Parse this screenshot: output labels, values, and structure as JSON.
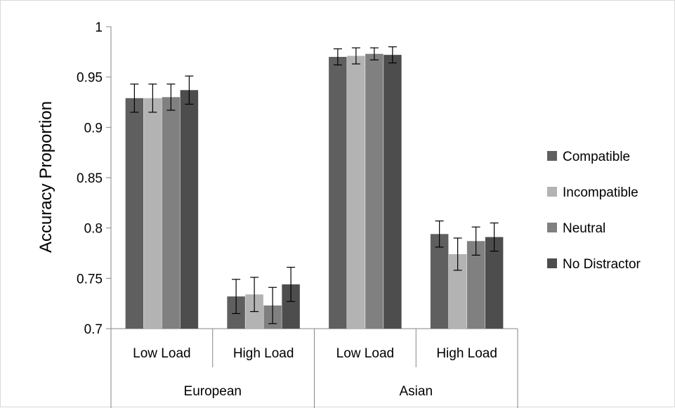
{
  "chart_data": {
    "type": "bar",
    "title": "",
    "ylabel": "Accuracy Proportion",
    "xlabel": "",
    "ylim": [
      0.7,
      1.0
    ],
    "yticks": [
      "0.7",
      "0.75",
      "0.8",
      "0.85",
      "0.9",
      "0.95",
      "1"
    ],
    "ytick_values": [
      0.7,
      0.75,
      0.8,
      0.85,
      0.9,
      0.95,
      1.0
    ],
    "grid": false,
    "legend_position": "right",
    "groups": [
      {
        "label": "European",
        "subcategories": [
          "Low Load",
          "High Load"
        ]
      },
      {
        "label": "Asian",
        "subcategories": [
          "Low Load",
          "High Load"
        ]
      }
    ],
    "categories": [
      "Low Load",
      "High Load",
      "Low Load",
      "High Load"
    ],
    "series": [
      {
        "name": "Compatible",
        "color": "#5f5f5f",
        "values": [
          0.929,
          0.732,
          0.97,
          0.794
        ],
        "errors": [
          0.014,
          0.017,
          0.008,
          0.013
        ]
      },
      {
        "name": "Incompatible",
        "color": "#b3b3b3",
        "values": [
          0.929,
          0.734,
          0.971,
          0.774
        ],
        "errors": [
          0.014,
          0.017,
          0.008,
          0.016
        ]
      },
      {
        "name": "Neutral",
        "color": "#808080",
        "values": [
          0.93,
          0.723,
          0.973,
          0.787
        ],
        "errors": [
          0.013,
          0.018,
          0.006,
          0.014
        ]
      },
      {
        "name": "No Distractor",
        "color": "#4d4d4d",
        "values": [
          0.937,
          0.744,
          0.972,
          0.791
        ],
        "errors": [
          0.014,
          0.017,
          0.008,
          0.014
        ]
      }
    ]
  }
}
